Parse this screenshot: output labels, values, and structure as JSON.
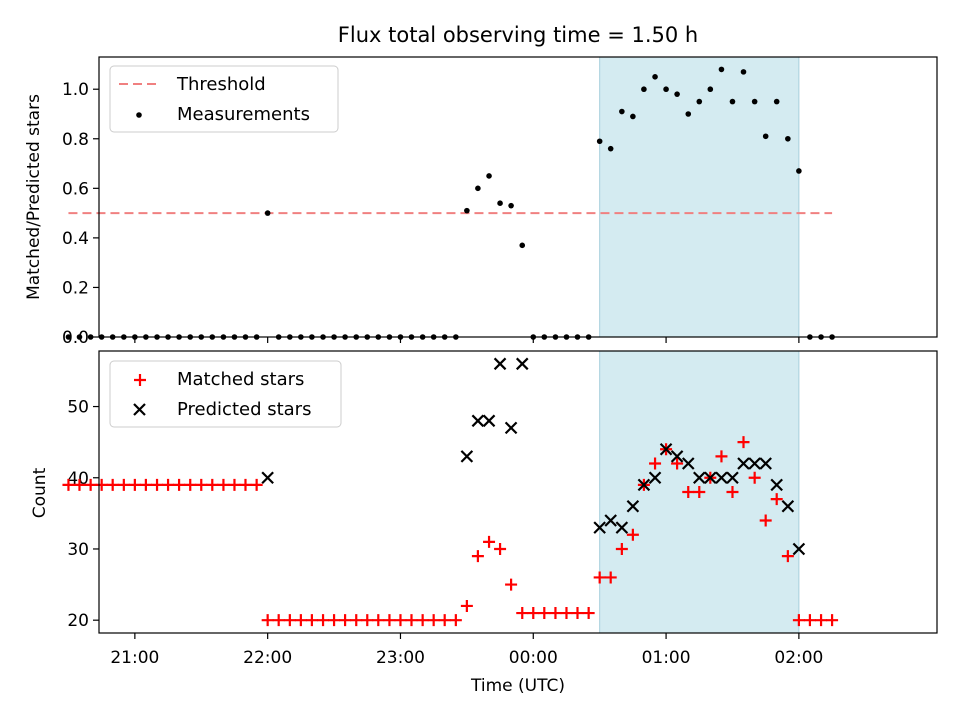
{
  "chart_data": {
    "title": "Flux total observing time = 1.50 h",
    "x_tick_labels": [
      "21:00",
      "22:00",
      "23:00",
      "00:00",
      "01:00",
      "02:00"
    ],
    "x_tick_values_hours": [
      21,
      22,
      23,
      24,
      25,
      26
    ],
    "xlabel": "Time (UTC)",
    "xlim_hours": [
      20.73,
      27.04
    ],
    "shaded_interval_hours": [
      24.5,
      26.0
    ],
    "shaded_color": "#d4ebf1",
    "x_hours": [
      20.5,
      20.583,
      20.667,
      20.75,
      20.833,
      20.917,
      21.0,
      21.083,
      21.167,
      21.25,
      21.333,
      21.417,
      21.5,
      21.583,
      21.667,
      21.75,
      21.833,
      21.917,
      22.0,
      22.083,
      22.167,
      22.25,
      22.333,
      22.417,
      22.5,
      22.583,
      22.667,
      22.75,
      22.833,
      22.917,
      23.0,
      23.083,
      23.167,
      23.25,
      23.333,
      23.417,
      23.5,
      23.583,
      23.667,
      23.75,
      23.833,
      23.917,
      24.0,
      24.083,
      24.167,
      24.25,
      24.333,
      24.417,
      24.5,
      24.583,
      24.667,
      24.75,
      24.833,
      24.917,
      25.0,
      25.083,
      25.167,
      25.25,
      25.333,
      25.417,
      25.5,
      25.583,
      25.667,
      25.75,
      25.833,
      25.917,
      26.0,
      26.083,
      26.167,
      26.25
    ],
    "panels": [
      {
        "type": "scatter",
        "ylabel": "Matched/Predicted stars",
        "ylim": [
          0,
          1.13
        ],
        "yticks": [
          "0.0",
          "0.2",
          "0.4",
          "0.6",
          "0.8",
          "1.0"
        ],
        "ytick_values": [
          0,
          0.2,
          0.4,
          0.6,
          0.8,
          1.0
        ],
        "threshold": {
          "name": "Threshold",
          "value": 0.5,
          "x_range_hours": [
            20.5,
            26.25
          ],
          "color": "#f08080"
        },
        "series": [
          {
            "name": "Measurements",
            "color": "#000000",
            "marker": "dot",
            "values": [
              0,
              0,
              0,
              0,
              0,
              0,
              0,
              0,
              0,
              0,
              0,
              0,
              0,
              0,
              0,
              0,
              0,
              0,
              0.5,
              0,
              0,
              0,
              0,
              0,
              0,
              0,
              0,
              0,
              0,
              0,
              0,
              0,
              0,
              0,
              0,
              0,
              0.51,
              0.6,
              0.65,
              0.54,
              0.53,
              0.37,
              0,
              0,
              0,
              0,
              0,
              0,
              0.79,
              0.76,
              0.91,
              0.89,
              1.0,
              1.05,
              1.0,
              0.98,
              0.9,
              0.95,
              1.0,
              1.08,
              0.95,
              1.07,
              0.95,
              0.81,
              0.95,
              0.8,
              0.67,
              0,
              0,
              0
            ]
          }
        ],
        "legend_position": "upper-left"
      },
      {
        "type": "scatter",
        "ylabel": "Count",
        "ylim": [
          18.2,
          57.8
        ],
        "yticks": [
          "20",
          "30",
          "40",
          "50"
        ],
        "ytick_values": [
          20,
          30,
          40,
          50
        ],
        "series": [
          {
            "name": "Matched stars",
            "color": "#ff0000",
            "marker": "plus",
            "values": [
              39,
              39,
              39,
              39,
              39,
              39,
              39,
              39,
              39,
              39,
              39,
              39,
              39,
              39,
              39,
              39,
              39,
              39,
              20,
              20,
              20,
              20,
              20,
              20,
              20,
              20,
              20,
              20,
              20,
              20,
              20,
              20,
              20,
              20,
              20,
              20,
              22,
              29,
              31,
              30,
              25,
              21,
              21,
              21,
              21,
              21,
              21,
              21,
              26,
              26,
              30,
              32,
              39,
              42,
              44,
              42,
              38,
              38,
              40,
              43,
              38,
              45,
              40,
              34,
              37,
              29,
              20,
              20,
              20,
              20
            ]
          },
          {
            "name": "Predicted stars",
            "color": "#000000",
            "marker": "x",
            "values": [
              null,
              null,
              null,
              null,
              null,
              null,
              null,
              null,
              null,
              null,
              null,
              null,
              null,
              null,
              null,
              null,
              null,
              null,
              40,
              null,
              null,
              null,
              null,
              null,
              null,
              null,
              null,
              null,
              null,
              null,
              null,
              null,
              null,
              null,
              null,
              null,
              43,
              48,
              48,
              56,
              47,
              56,
              null,
              null,
              null,
              null,
              null,
              null,
              33,
              34,
              33,
              36,
              39,
              40,
              44,
              43,
              42,
              40,
              40,
              40,
              40,
              42,
              42,
              42,
              39,
              36,
              30,
              null,
              null,
              null
            ]
          }
        ],
        "legend_position": "upper-left"
      }
    ]
  }
}
